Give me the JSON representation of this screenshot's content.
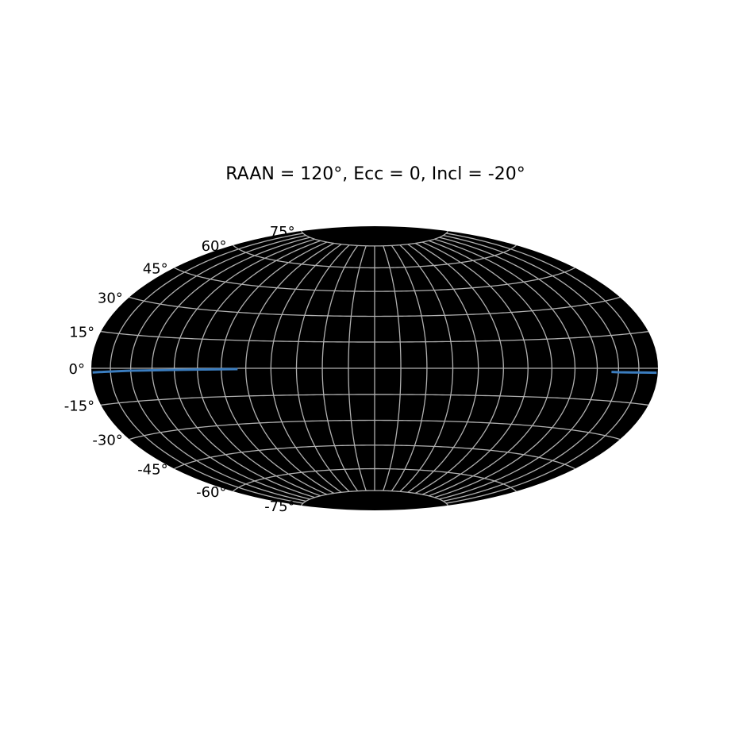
{
  "chart_data": {
    "type": "line",
    "projection": "hammer",
    "title": "RAAN = 120°, Ecc = 0, Incl = -20°",
    "background_color": "#000000",
    "grid": true,
    "grid_color": "#b0b0b0",
    "grid_lon_step_deg": 15,
    "grid_lat_step_deg": 15,
    "lat_tick_labels": [
      {
        "lat": 75,
        "label": "75°"
      },
      {
        "lat": 60,
        "label": "60°"
      },
      {
        "lat": 45,
        "label": "45°"
      },
      {
        "lat": 30,
        "label": "30°"
      },
      {
        "lat": 15,
        "label": "15°"
      },
      {
        "lat": 0,
        "label": "0°"
      },
      {
        "lat": -15,
        "label": "-15°"
      },
      {
        "lat": -30,
        "label": "-30°"
      },
      {
        "lat": -45,
        "label": "-45°"
      },
      {
        "lat": -60,
        "label": "-60°"
      },
      {
        "lat": -75,
        "label": "-75°"
      }
    ],
    "series": [
      {
        "color": "#3b7dbf",
        "segments": [
          {
            "lon": [
              -179,
              -175,
              -170,
              -160,
              -150,
              -140,
              -130,
              -120,
              -110,
              -100,
              -90,
              -80
            ],
            "lat": [
              -1.7,
              -1.6,
              -1.5,
              -1.3,
              -1.1,
              -1.0,
              -0.9,
              -0.8,
              -0.7,
              -0.6,
              -0.5,
              -0.4
            ]
          },
          {
            "lon": [
              145,
              150,
              160,
              170,
              179
            ],
            "lat": [
              -1.7,
              -1.8,
              -1.8,
              -1.8,
              -1.8
            ]
          }
        ]
      }
    ]
  }
}
